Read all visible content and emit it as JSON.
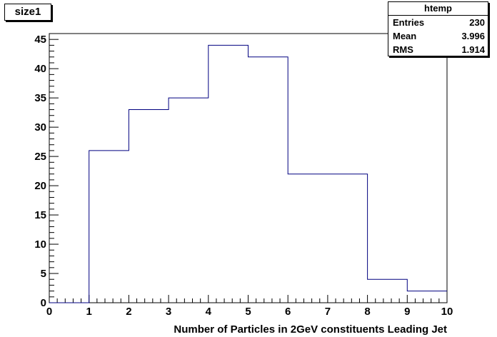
{
  "title": "size1",
  "stats": {
    "name": "htemp",
    "rows": [
      {
        "label": "Entries",
        "value": "230"
      },
      {
        "label": "Mean",
        "value": "3.996"
      },
      {
        "label": "RMS",
        "value": "1.914"
      }
    ]
  },
  "chart_data": {
    "type": "histogram",
    "xlabel": "Number of Particles in 2GeV constituents Leading Jet",
    "ylabel": "",
    "xlim": [
      0,
      10
    ],
    "ylim": [
      0,
      46
    ],
    "x_ticks": [
      0,
      1,
      2,
      3,
      4,
      5,
      6,
      7,
      8,
      9,
      10
    ],
    "y_ticks": [
      0,
      5,
      10,
      15,
      20,
      25,
      30,
      35,
      40,
      45
    ],
    "bin_edges": [
      0,
      1,
      2,
      3,
      4,
      5,
      6,
      7,
      8,
      9,
      10
    ],
    "values": [
      0,
      26,
      33,
      35,
      44,
      42,
      22,
      22,
      4,
      2
    ],
    "line_color": "#000080",
    "grid": false,
    "legend": "none"
  }
}
